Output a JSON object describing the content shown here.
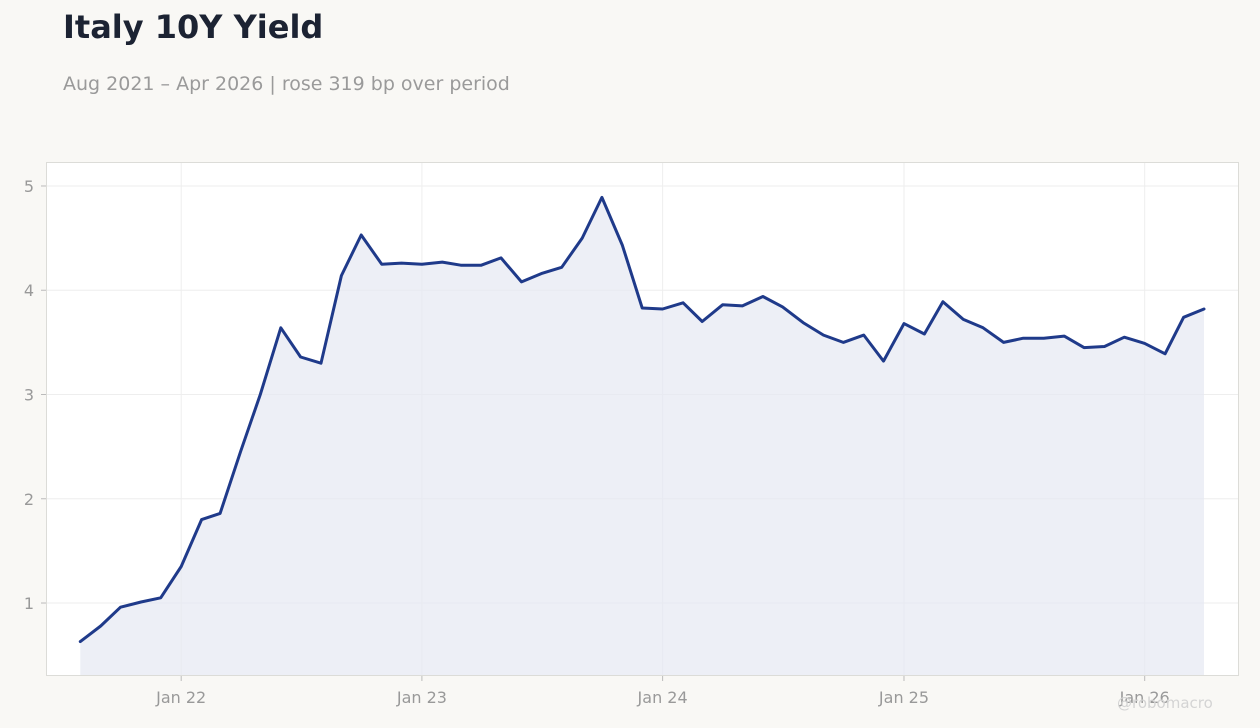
{
  "header": {
    "title": "Italy 10Y Yield",
    "subtitle": "Aug 2021 – Apr 2026 | rose 319 bp over period"
  },
  "watermark": "@robomacro",
  "colors": {
    "background": "#f9f8f5",
    "plot_background": "#ffffff",
    "line": "#1f3a8a",
    "fill": "#e6e8f2",
    "grid": "#eeeeee",
    "tick_text": "#999999"
  },
  "chart_data": {
    "type": "area",
    "title": "Italy 10Y Yield",
    "subtitle": "Aug 2021 – Apr 2026 | rose 319 bp over period",
    "xlabel": "",
    "ylabel": "",
    "ylim": [
      0.3,
      5.23
    ],
    "yticks": [
      1,
      2,
      3,
      4,
      5
    ],
    "xlim": [
      "2021-06-10",
      "2026-05-24"
    ],
    "xticks": [
      {
        "date": "2022-01-01",
        "label": "Jan 22"
      },
      {
        "date": "2023-01-01",
        "label": "Jan 23"
      },
      {
        "date": "2024-01-01",
        "label": "Jan 24"
      },
      {
        "date": "2025-01-01",
        "label": "Jan 25"
      },
      {
        "date": "2026-01-01",
        "label": "Jan 26"
      }
    ],
    "grid": true,
    "series": [
      {
        "x": [
          "2021-08-01",
          "2021-09-01",
          "2021-10-01",
          "2021-11-01",
          "2021-12-01",
          "2022-01-01",
          "2022-02-01",
          "2022-03-01",
          "2022-04-01",
          "2022-05-01",
          "2022-06-01",
          "2022-07-01",
          "2022-08-01",
          "2022-09-01",
          "2022-10-01",
          "2022-11-01",
          "2022-12-01",
          "2023-01-01",
          "2023-02-01",
          "2023-03-01",
          "2023-04-01",
          "2023-05-01",
          "2023-06-01",
          "2023-07-01",
          "2023-08-01",
          "2023-09-01",
          "2023-10-01",
          "2023-11-01",
          "2023-12-01",
          "2024-01-01",
          "2024-02-01",
          "2024-03-01",
          "2024-04-01",
          "2024-05-01",
          "2024-06-01",
          "2024-07-01",
          "2024-08-01",
          "2024-09-01",
          "2024-10-01",
          "2024-11-01",
          "2024-12-01",
          "2025-01-01",
          "2025-02-01",
          "2025-03-01",
          "2025-04-01",
          "2025-05-01",
          "2025-06-01",
          "2025-07-01",
          "2025-08-01",
          "2025-09-01",
          "2025-10-01",
          "2025-11-01",
          "2025-12-01",
          "2026-01-01",
          "2026-02-01",
          "2026-03-01",
          "2026-04-01"
        ],
        "values": [
          0.63,
          0.78,
          0.96,
          1.01,
          1.05,
          1.35,
          1.8,
          1.86,
          2.45,
          3.0,
          3.64,
          3.36,
          3.3,
          4.14,
          4.53,
          4.25,
          4.26,
          4.25,
          4.27,
          4.24,
          4.24,
          4.31,
          4.08,
          4.16,
          4.22,
          4.5,
          4.89,
          4.43,
          3.83,
          3.82,
          3.88,
          3.7,
          3.86,
          3.85,
          3.94,
          3.84,
          3.69,
          3.57,
          3.5,
          3.57,
          3.32,
          3.68,
          3.58,
          3.89,
          3.72,
          3.64,
          3.5,
          3.54,
          3.54,
          3.56,
          3.45,
          3.46,
          3.55,
          3.49,
          3.39,
          3.74,
          3.82
        ]
      }
    ]
  }
}
